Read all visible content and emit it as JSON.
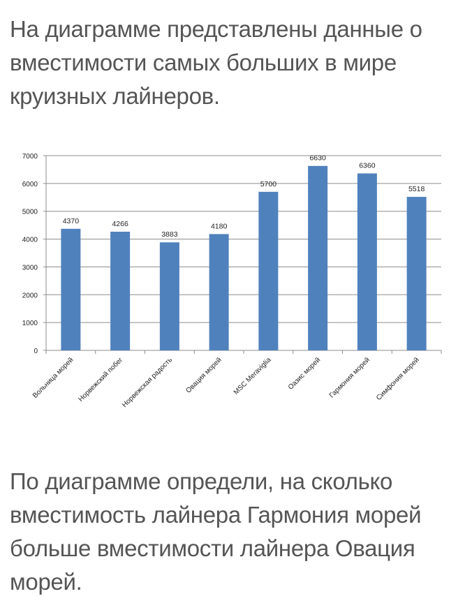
{
  "intro_text": "На диаграмме представлены данные о вместимости самых больших в мире круизных лайнеров.",
  "question_text": "По диаграмме определи, на сколько вместимость лайнера Гармония морей больше вместимости лайнера Овация морей.",
  "chart_data": {
    "type": "bar",
    "title": "",
    "xlabel": "",
    "ylabel": "",
    "categories": [
      "Вольница морей",
      "Норвежский побег",
      "Норвежская радость",
      "Овация морей",
      "MSC Meraviglia",
      "Оазис морей",
      "Гармония морей",
      "Симфония морей"
    ],
    "values": [
      4370,
      4266,
      3883,
      4180,
      5700,
      6630,
      6360,
      5518
    ],
    "ylim": [
      0,
      7000
    ],
    "yticks": [
      0,
      1000,
      2000,
      3000,
      4000,
      5000,
      6000,
      7000
    ],
    "grid": true,
    "legend": "none",
    "bar_color": "#4f81bd"
  }
}
